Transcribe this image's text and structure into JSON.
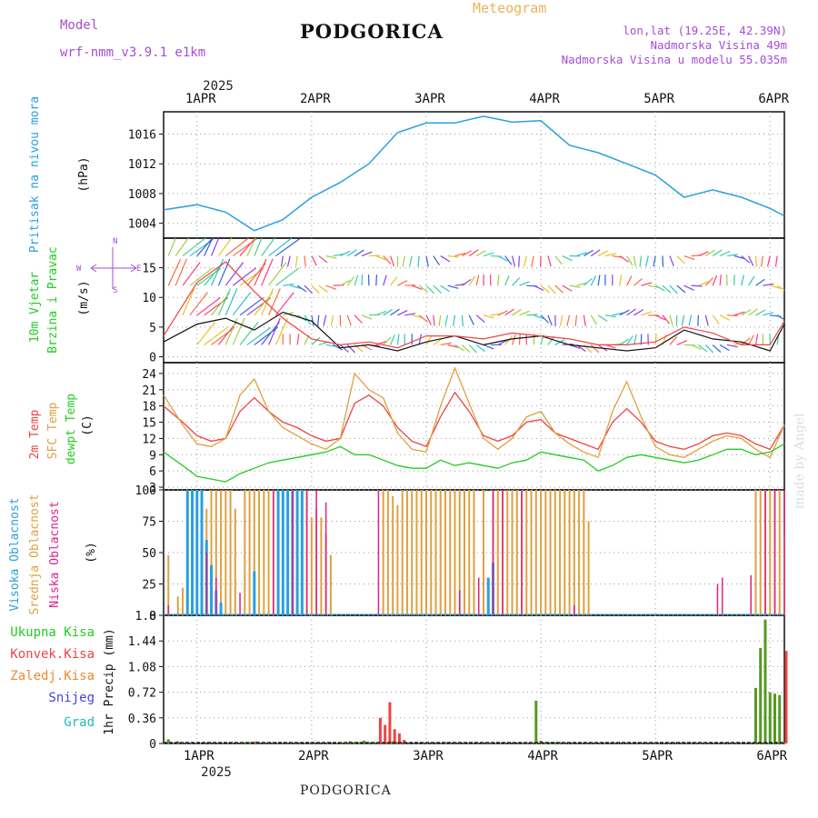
{
  "header": {
    "model_label": "Model",
    "model_version": "wrf-nmm_v3.9.1 e1km",
    "title": "PODGORICA",
    "meteogram_label": "Meteogram",
    "lonlat": "lon,lat (19.25E, 42.39N)",
    "elevation": "Nadmorska Visina 49m",
    "model_elevation": "Nadmorska Visina u modelu 55.035m"
  },
  "footer": {
    "station": "PODGORICA",
    "watermark": "made by Angel"
  },
  "time_axis": {
    "year": "2025",
    "days": [
      "1APR",
      "2APR",
      "3APR",
      "4APR",
      "5APR",
      "6APR"
    ],
    "start_hour_offset": -7,
    "end_hour": 123
  },
  "colors": {
    "pressure": "#2a9fe0",
    "temp2m": "#ee4444",
    "sfc_temp": "#e0a040",
    "dewpoint": "#22cc22",
    "cloud_high": "#2a9fe0",
    "cloud_mid": "#e0a040",
    "cloud_low": "#dd2288",
    "precip_total": "#559922",
    "precip_conv": "#ee4444",
    "precip_frozen": "#ee8833",
    "snow": "#4444dd",
    "graupel": "#22bbbb",
    "wind_label": "#22cc22"
  },
  "chart_data": [
    {
      "type": "line",
      "panel": "pressure",
      "ylabel": [
        "Pritisak na nivou mora",
        "(hPa)"
      ],
      "yticks": [
        1004,
        1008,
        1012,
        1016
      ],
      "ylim": [
        1002,
        1019
      ],
      "grid": true,
      "x": [
        -7,
        0,
        6,
        12,
        18,
        24,
        30,
        36,
        42,
        48,
        54,
        60,
        66,
        72,
        78,
        84,
        90,
        96,
        102,
        108,
        114,
        120,
        123
      ],
      "series": [
        {
          "name": "Pritisak na nivou mora",
          "values": [
            1005.8,
            1006.5,
            1005.5,
            1003.0,
            1004.5,
            1007.5,
            1009.5,
            1012.0,
            1016.2,
            1017.5,
            1017.5,
            1018.4,
            1017.6,
            1017.8,
            1014.5,
            1013.5,
            1012.0,
            1010.5,
            1007.5,
            1008.5,
            1007.5,
            1006.0,
            1005.0
          ]
        }
      ]
    },
    {
      "type": "line",
      "panel": "wind",
      "ylabel": [
        "10m Vjetar",
        "Brzina i Pravac",
        "(m/s)"
      ],
      "compass": {
        "w": "W",
        "e": "E",
        "n": "N",
        "s": "S"
      },
      "yticks": [
        0,
        5,
        10,
        15
      ],
      "ylim": [
        -1,
        20
      ],
      "grid": true,
      "x": [
        -7,
        0,
        6,
        12,
        18,
        24,
        30,
        36,
        42,
        48,
        54,
        60,
        66,
        72,
        78,
        84,
        90,
        96,
        102,
        108,
        114,
        120,
        123
      ],
      "series": [
        {
          "name": "Brzina",
          "values": [
            2.5,
            5.5,
            6.5,
            4.5,
            7.5,
            6.0,
            1.5,
            2.0,
            1.0,
            2.5,
            3.5,
            2.0,
            3.0,
            3.5,
            2.0,
            1.5,
            1.0,
            1.5,
            4.5,
            3.0,
            2.5,
            1.0,
            5.5
          ]
        },
        {
          "name": "Udari",
          "values": [
            3.5,
            12.5,
            16.0,
            11.0,
            6.5,
            3.0,
            2.0,
            2.5,
            1.5,
            3.5,
            3.5,
            3.0,
            4.0,
            3.5,
            3.0,
            2.0,
            2.0,
            2.5,
            5.0,
            4.0,
            2.0,
            2.0,
            6.0
          ]
        }
      ]
    },
    {
      "type": "line",
      "panel": "temperature",
      "ylabel": [
        "2m Temp",
        "SFC Temp",
        "dewpt Temp",
        "(C)"
      ],
      "yticks": [
        3,
        6,
        9,
        12,
        15,
        18,
        21,
        24
      ],
      "ylim": [
        2.5,
        26
      ],
      "grid": true,
      "x": [
        -7,
        -3,
        0,
        3,
        6,
        9,
        12,
        15,
        18,
        21,
        24,
        27,
        30,
        33,
        36,
        39,
        42,
        45,
        48,
        51,
        54,
        57,
        60,
        63,
        66,
        69,
        72,
        75,
        78,
        81,
        84,
        87,
        90,
        93,
        96,
        99,
        102,
        105,
        108,
        111,
        114,
        117,
        120,
        123
      ],
      "series": [
        {
          "name": "2m Temp",
          "values": [
            18.0,
            15.0,
            12.5,
            11.5,
            12.0,
            17.0,
            19.5,
            17.0,
            15.0,
            14.0,
            12.5,
            11.5,
            12.0,
            18.5,
            20.0,
            18.0,
            14.0,
            11.5,
            10.5,
            16.0,
            20.5,
            17.0,
            12.5,
            11.5,
            12.5,
            15.0,
            15.5,
            13.0,
            12.0,
            11.0,
            10.0,
            15.0,
            17.5,
            15.0,
            11.5,
            10.5,
            10.0,
            11.0,
            12.5,
            13.0,
            12.5,
            11.0,
            10.0,
            14.5
          ]
        },
        {
          "name": "SFC Temp",
          "values": [
            20.0,
            14.5,
            11.0,
            10.5,
            12.0,
            20.0,
            23.0,
            17.0,
            14.0,
            12.5,
            11.0,
            10.0,
            12.0,
            24.0,
            21.0,
            19.5,
            13.0,
            10.0,
            9.5,
            18.0,
            25.0,
            18.5,
            12.0,
            10.0,
            12.0,
            16.0,
            17.0,
            13.0,
            11.0,
            9.5,
            8.5,
            17.0,
            22.5,
            16.0,
            10.5,
            9.0,
            8.5,
            10.0,
            11.5,
            12.5,
            12.0,
            10.0,
            8.5,
            14.5
          ]
        },
        {
          "name": "dewpt Temp",
          "values": [
            9.5,
            7.0,
            5.0,
            4.5,
            4.0,
            5.5,
            6.5,
            7.5,
            8.0,
            8.5,
            9.0,
            9.5,
            10.5,
            9.0,
            9.0,
            8.0,
            7.0,
            6.5,
            6.5,
            8.0,
            7.0,
            7.5,
            7.0,
            6.5,
            7.5,
            8.0,
            9.5,
            9.0,
            8.5,
            8.0,
            6.0,
            7.0,
            8.5,
            9.0,
            8.5,
            8.0,
            7.5,
            8.0,
            9.0,
            10.0,
            10.0,
            9.0,
            9.5,
            11.0
          ]
        }
      ]
    },
    {
      "type": "bar",
      "panel": "clouds",
      "ylabel": [
        "Visoka Oblacnost",
        "Srednja Oblacnost",
        "Niska Oblacnost",
        "(%)"
      ],
      "yticks": [
        0,
        25,
        50,
        75,
        100
      ],
      "ylim": [
        0,
        100
      ],
      "grid": true,
      "series": [
        {
          "name": "Visoka Oblacnost",
          "x": [
            -2,
            -1,
            0,
            1,
            2,
            3,
            4,
            5,
            12,
            17,
            18,
            19,
            20,
            21,
            22,
            61,
            62
          ],
          "values": [
            100,
            100,
            100,
            100,
            60,
            40,
            20,
            10,
            35,
            100,
            100,
            100,
            100,
            100,
            100,
            30,
            42
          ]
        },
        {
          "name": "Srednja Oblacnost",
          "x": [
            -6,
            -4,
            -3,
            1,
            2,
            3,
            4,
            5,
            6,
            7,
            8,
            10,
            11,
            12,
            13,
            14,
            15,
            16,
            17,
            18,
            19,
            20,
            21,
            22,
            23,
            24,
            25,
            26,
            27,
            28,
            39,
            40,
            41,
            42,
            43,
            44,
            45,
            46,
            47,
            48,
            49,
            50,
            51,
            52,
            53,
            54,
            55,
            56,
            57,
            58,
            60,
            62,
            63,
            64,
            65,
            66,
            67,
            68,
            69,
            70,
            71,
            72,
            73,
            74,
            75,
            76,
            77,
            78,
            79,
            80,
            81,
            82,
            117,
            118,
            119,
            120,
            121,
            122,
            123
          ],
          "values": [
            48,
            15,
            22,
            100,
            85,
            100,
            100,
            100,
            100,
            100,
            85,
            100,
            100,
            100,
            100,
            100,
            100,
            100,
            100,
            100,
            100,
            100,
            100,
            100,
            100,
            78,
            85,
            78,
            65,
            48,
            100,
            100,
            95,
            88,
            100,
            100,
            100,
            100,
            100,
            100,
            100,
            100,
            100,
            100,
            100,
            100,
            100,
            100,
            100,
            100,
            100,
            100,
            100,
            100,
            100,
            100,
            100,
            100,
            100,
            100,
            100,
            100,
            100,
            100,
            100,
            100,
            100,
            100,
            100,
            100,
            100,
            75,
            100,
            100,
            100,
            100,
            100,
            100,
            65
          ]
        },
        {
          "name": "Niska Oblacnost",
          "x": [
            -6,
            2,
            4,
            9,
            16,
            20,
            23,
            25,
            27,
            38,
            55,
            59,
            62,
            64,
            68,
            79,
            109,
            110,
            116,
            119,
            121,
            123
          ],
          "values": [
            8,
            50,
            30,
            18,
            100,
            100,
            100,
            100,
            90,
            100,
            20,
            30,
            100,
            100,
            100,
            8,
            25,
            30,
            32,
            100,
            100,
            100
          ]
        }
      ]
    },
    {
      "type": "bar",
      "panel": "precip",
      "ylabel": [
        "1hr Precip (mm)"
      ],
      "legend": [
        "Ukupna Kisa",
        "Konvek.Kisa",
        "Zaledj.Kisa",
        "Snijeg",
        "Grad"
      ],
      "yticks": [
        0,
        0.36,
        0.72,
        1.08,
        1.44,
        1.8
      ],
      "ylim": [
        0,
        1.8
      ],
      "grid": true,
      "series": [
        {
          "name": "Ukupna Kisa",
          "x": [
            -6,
            -4,
            11,
            31,
            32,
            33,
            34,
            35,
            36,
            37,
            38,
            39,
            40,
            41,
            42,
            43,
            52,
            61,
            69,
            70,
            71,
            72,
            73,
            74,
            75,
            76,
            117,
            118,
            119,
            120,
            121,
            122,
            123
          ],
          "values": [
            0.06,
            0.03,
            0.02,
            0.02,
            0.03,
            0.02,
            0.02,
            0.04,
            0.02,
            0.02,
            0.02,
            0.02,
            0.02,
            0.03,
            0.02,
            0.02,
            0.02,
            0.02,
            0.02,
            0.02,
            0.6,
            0.04,
            0.02,
            0.02,
            0.02,
            0.02,
            0.78,
            1.34,
            1.74,
            0.72,
            0.7,
            0.68,
            0.02
          ]
        },
        {
          "name": "Konvek.Kisa",
          "x": [
            12,
            38,
            39,
            40,
            41,
            42,
            43,
            123
          ],
          "values": [
            0.03,
            0.36,
            0.26,
            0.58,
            0.2,
            0.14,
            0.05,
            1.3
          ]
        },
        {
          "name": "Zaledj.Kisa",
          "x": [],
          "values": []
        },
        {
          "name": "Snijeg",
          "x": [],
          "values": []
        },
        {
          "name": "Grad",
          "x": [],
          "values": []
        }
      ]
    }
  ]
}
